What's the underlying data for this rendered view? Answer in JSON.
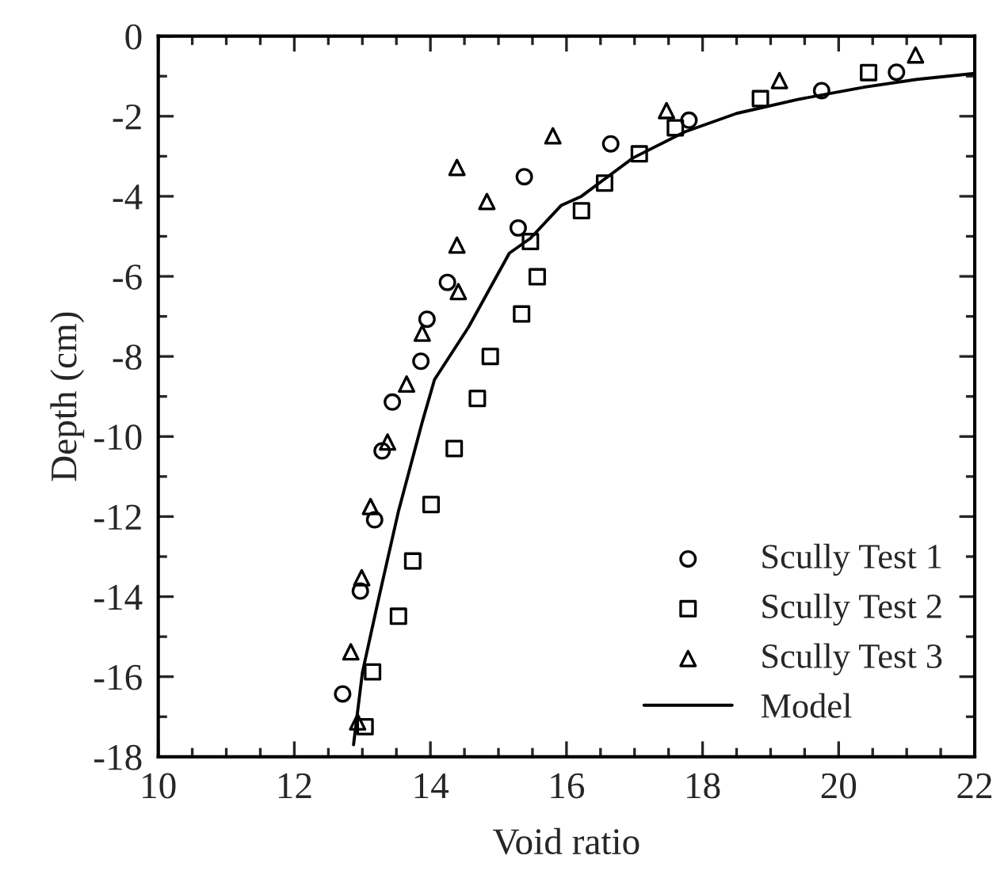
{
  "chart_data": {
    "type": "scatter",
    "xlabel": "Void ratio",
    "ylabel": "Depth (cm)",
    "xlim": [
      10,
      22
    ],
    "ylim": [
      -18,
      0
    ],
    "xticks": [
      10,
      12,
      14,
      16,
      18,
      20,
      22
    ],
    "yticks": [
      -18,
      -16,
      -14,
      -12,
      -10,
      -8,
      -6,
      -4,
      -2,
      0
    ],
    "grid": false,
    "legend": "bottom right",
    "series": [
      {
        "name": "Scully Test 1",
        "marker": "circle",
        "color": "#000000",
        "x": [
          15.38,
          15.29,
          14.25,
          13.95,
          13.86,
          13.44,
          13.29,
          13.18,
          12.97,
          12.71,
          16.65,
          17.8,
          19.75,
          20.85
        ],
        "values": [
          -3.51,
          -4.79,
          -6.15,
          -7.07,
          -8.12,
          -9.14,
          -10.36,
          -12.08,
          -13.86,
          -16.43,
          -2.69,
          -2.1,
          -1.36,
          -0.9
        ]
      },
      {
        "name": "Scully Test 2",
        "marker": "square",
        "color": "#000000",
        "x": [
          15.47,
          15.57,
          15.34,
          14.88,
          14.69,
          14.35,
          14.01,
          13.74,
          13.53,
          13.15,
          13.04,
          16.22,
          16.56,
          17.07,
          17.6,
          18.85,
          20.44
        ],
        "values": [
          -5.13,
          -6.01,
          -6.94,
          -8.0,
          -9.05,
          -10.3,
          -11.7,
          -13.11,
          -14.49,
          -15.88,
          -17.25,
          -4.36,
          -3.67,
          -2.94,
          -2.29,
          -1.56,
          -0.91
        ]
      },
      {
        "name": "Scully Test 3",
        "marker": "triangle",
        "color": "#000000",
        "x": [
          14.39,
          14.83,
          14.39,
          14.41,
          13.88,
          13.65,
          15.8,
          13.37,
          13.12,
          12.99,
          12.83,
          12.93,
          17.47,
          19.13,
          21.13
        ],
        "values": [
          -3.28,
          -4.13,
          -5.22,
          -6.38,
          -7.42,
          -8.69,
          -2.49,
          -10.14,
          -11.75,
          -13.53,
          -15.38,
          -17.13,
          -1.86,
          -1.11,
          -0.47
        ]
      },
      {
        "name": "Model",
        "type": "line",
        "line_style": "solid",
        "color": "#000000",
        "x": [
          12.87,
          13.0,
          13.23,
          13.53,
          13.88,
          14.06,
          14.56,
          15.16,
          15.47,
          15.92,
          16.22,
          16.98,
          17.74,
          18.5,
          19.4,
          20.39,
          21.15,
          21.83,
          22.0
        ],
        "values": [
          -17.7,
          -15.9,
          -14.12,
          -11.87,
          -9.64,
          -8.58,
          -7.27,
          -5.42,
          -5.05,
          -4.23,
          -4.0,
          -3.04,
          -2.39,
          -1.93,
          -1.58,
          -1.27,
          -1.08,
          -0.96,
          -0.93
        ]
      }
    ]
  }
}
